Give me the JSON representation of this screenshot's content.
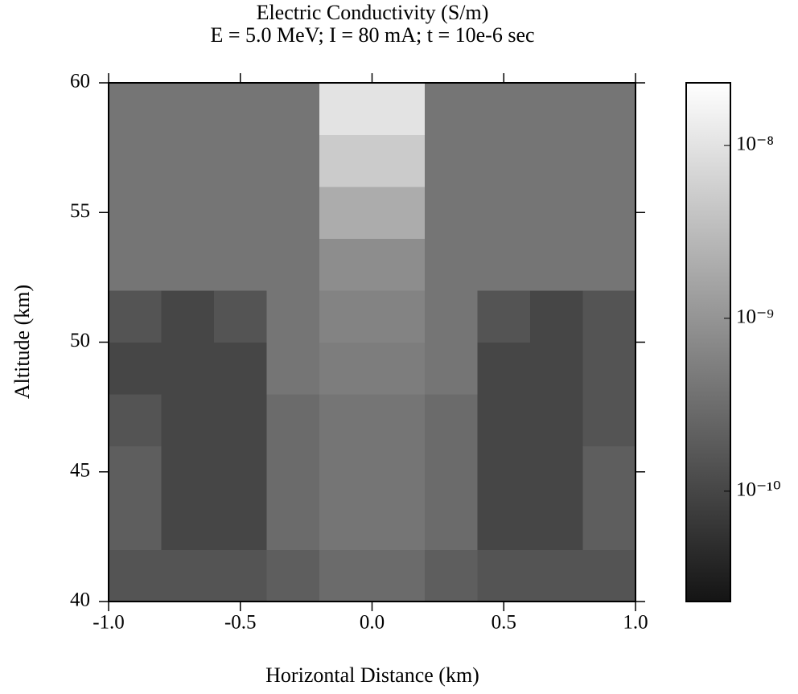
{
  "chart_data": {
    "type": "heatmap",
    "title": "Electric Conductivity (S/m)",
    "subtitle": "E = 5.0 MeV; I = 80 mA; t = 10e-6 sec",
    "xlabel": "Horizontal Distance (km)",
    "ylabel": "Altitude (km)",
    "xlim": [
      -1.0,
      1.0
    ],
    "xticks": [
      {
        "value": -1.0,
        "label": "-1.0"
      },
      {
        "value": -0.5,
        "label": "-0.5"
      },
      {
        "value": 0.0,
        "label": "0.0"
      },
      {
        "value": 0.5,
        "label": "0.5"
      },
      {
        "value": 1.0,
        "label": "1.0"
      }
    ],
    "ylim": [
      40,
      60
    ],
    "yticks": [
      40,
      45,
      50,
      55,
      60
    ],
    "x": [
      -0.9,
      -0.7,
      -0.5,
      -0.3,
      -0.1,
      0.1,
      0.3,
      0.5,
      0.7,
      0.9
    ],
    "y": [
      41,
      43,
      45,
      47,
      49,
      51,
      53,
      55,
      57,
      59
    ],
    "z": [
      [
        1.5e-10,
        1.5e-10,
        1.5e-10,
        2e-10,
        3e-10,
        3e-10,
        2e-10,
        1.5e-10,
        1.5e-10,
        1.5e-10
      ],
      [
        2e-10,
        1e-10,
        1e-10,
        3e-10,
        4e-10,
        4e-10,
        3e-10,
        1e-10,
        1e-10,
        2e-10
      ],
      [
        2e-10,
        1e-10,
        1e-10,
        3e-10,
        4e-10,
        4e-10,
        3e-10,
        1e-10,
        1e-10,
        2e-10
      ],
      [
        1.5e-10,
        1e-10,
        1e-10,
        3e-10,
        4e-10,
        4e-10,
        3e-10,
        1e-10,
        1e-10,
        1.5e-10
      ],
      [
        1e-10,
        1e-10,
        1e-10,
        4e-10,
        5e-10,
        5e-10,
        4e-10,
        1e-10,
        1e-10,
        1.5e-10
      ],
      [
        1.5e-10,
        1e-10,
        1.5e-10,
        4e-10,
        6e-10,
        6e-10,
        4e-10,
        1.5e-10,
        1e-10,
        1.5e-10
      ],
      [
        4e-10,
        4e-10,
        4e-10,
        4e-10,
        8e-10,
        8e-10,
        4e-10,
        4e-10,
        4e-10,
        4e-10
      ],
      [
        4e-10,
        4e-10,
        4e-10,
        4e-10,
        2e-09,
        2e-09,
        4e-10,
        4e-10,
        4e-10,
        4e-10
      ],
      [
        4e-10,
        4e-10,
        4e-10,
        4e-10,
        5e-09,
        5e-09,
        4e-10,
        4e-10,
        4e-10,
        4e-10
      ],
      [
        4e-10,
        4e-10,
        4e-10,
        4e-10,
        1e-08,
        1e-08,
        4e-10,
        4e-10,
        4e-10,
        4e-10
      ]
    ],
    "zscale": "log",
    "zlim": [
      2.3e-11,
      2.3e-08
    ],
    "zticks": [
      {
        "value": 1e-08,
        "label": "10⁻⁸"
      },
      {
        "value": 1e-09,
        "label": "10⁻⁹"
      },
      {
        "value": 1e-10,
        "label": "10⁻¹⁰"
      }
    ]
  }
}
